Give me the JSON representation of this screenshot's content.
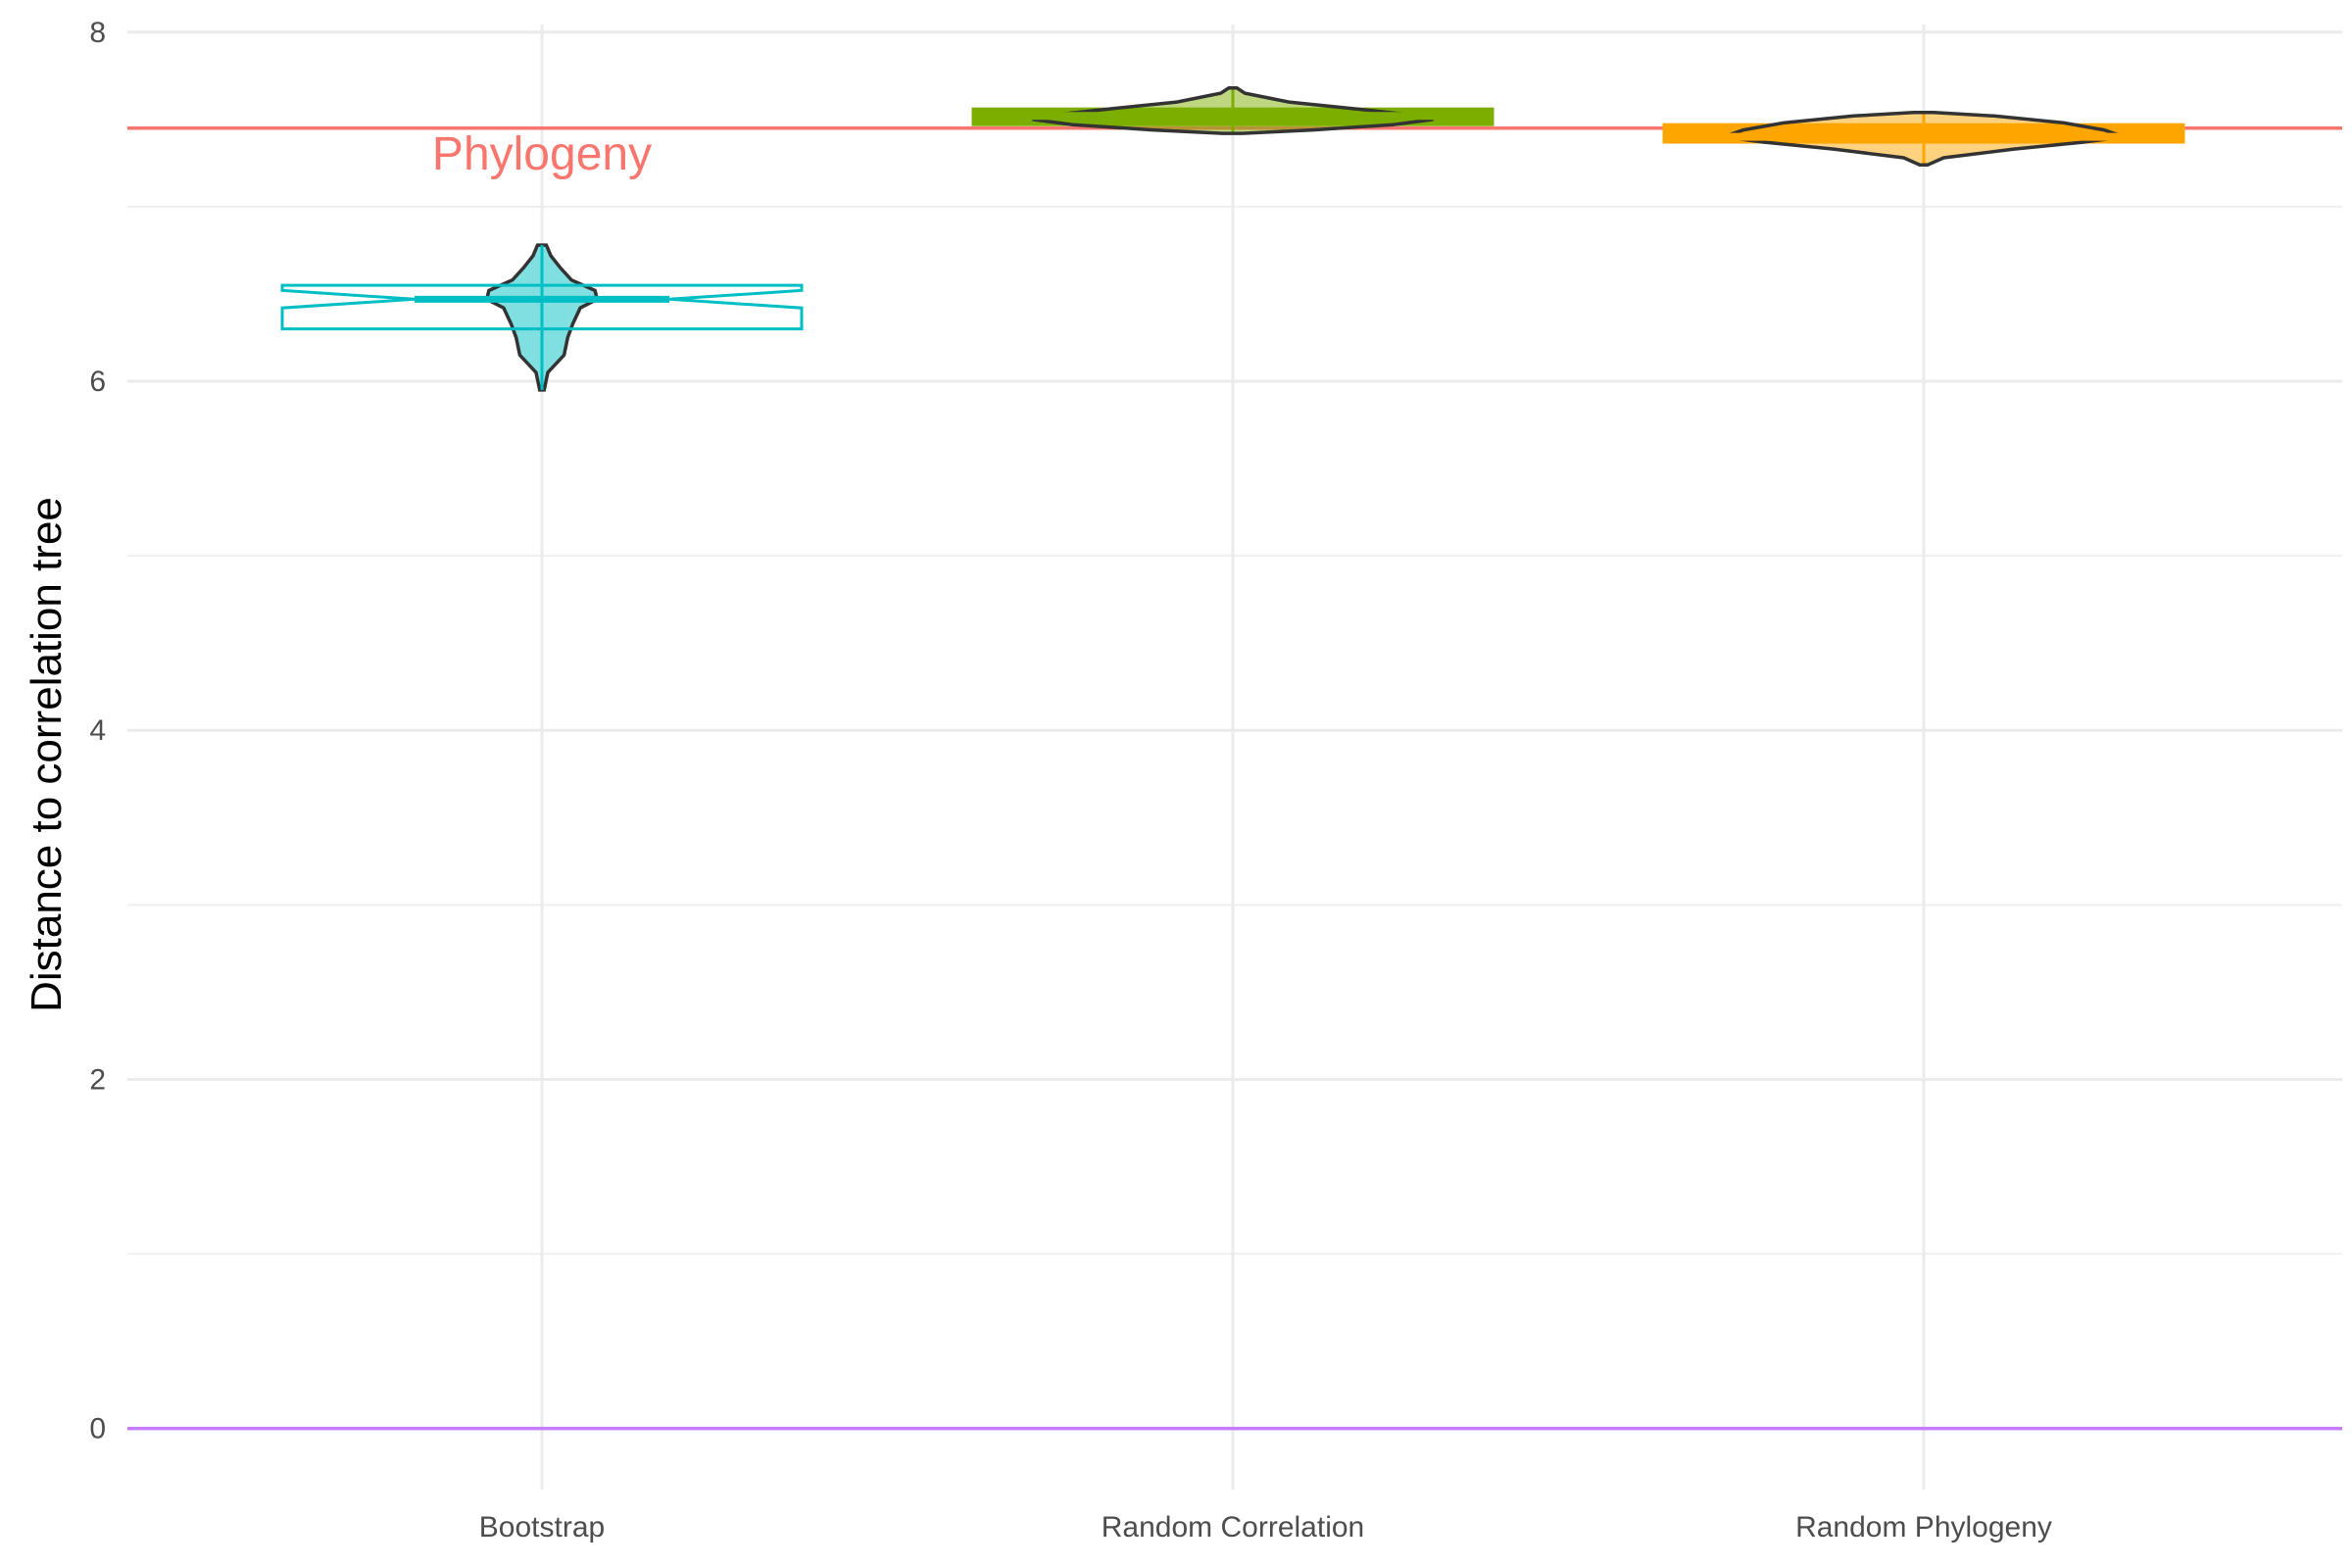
{
  "chart_data": {
    "type": "violin",
    "title": "",
    "xlabel": "",
    "ylabel": "Distance to correlation tree",
    "ylim": [
      -0.35,
      8.1
    ],
    "y_ticks": [
      0,
      2,
      4,
      6,
      8
    ],
    "y_minor_ticks": [
      1,
      3,
      5,
      7
    ],
    "grid": true,
    "legend": "none",
    "categories": [
      "Bootstrap",
      "Random Correlation",
      "Random Phylogeny"
    ],
    "series": [
      {
        "category": "Bootstrap",
        "color": "#00BFC4",
        "min": 5.95,
        "q1": 6.3,
        "median": 6.47,
        "q3": 6.55,
        "max": 6.78,
        "notch_low": 6.42,
        "notch_high": 6.52,
        "violin_profile": [
          [
            5.95,
            0.03
          ],
          [
            6.05,
            0.08
          ],
          [
            6.15,
            0.3
          ],
          [
            6.25,
            0.35
          ],
          [
            6.33,
            0.42
          ],
          [
            6.42,
            0.52
          ],
          [
            6.47,
            0.75
          ],
          [
            6.52,
            0.72
          ],
          [
            6.58,
            0.4
          ],
          [
            6.65,
            0.25
          ],
          [
            6.72,
            0.12
          ],
          [
            6.78,
            0.06
          ]
        ]
      },
      {
        "category": "Random Correlation",
        "color": "#7CAE00",
        "min": 7.42,
        "q1": 7.47,
        "median": 7.52,
        "q3": 7.56,
        "max": 7.68,
        "violin_profile": [
          [
            7.42,
            0.05
          ],
          [
            7.44,
            0.4
          ],
          [
            7.47,
            0.8
          ],
          [
            7.5,
            1.0
          ],
          [
            7.53,
            0.86
          ],
          [
            7.56,
            0.62
          ],
          [
            7.6,
            0.28
          ],
          [
            7.65,
            0.06
          ],
          [
            7.68,
            0.02
          ]
        ]
      },
      {
        "category": "Random Phylogeny",
        "color": "#FFA500",
        "min": 7.24,
        "q1": 7.37,
        "median": 7.4,
        "q3": 7.47,
        "max": 7.54,
        "violin_profile": [
          [
            7.24,
            0.02
          ],
          [
            7.28,
            0.1
          ],
          [
            7.33,
            0.45
          ],
          [
            7.37,
            0.8
          ],
          [
            7.4,
            1.0
          ],
          [
            7.44,
            0.9
          ],
          [
            7.48,
            0.7
          ],
          [
            7.52,
            0.35
          ],
          [
            7.54,
            0.05
          ]
        ]
      }
    ],
    "reference_lines": [
      {
        "value": 7.45,
        "color": "#F8766D",
        "label": "Phylogeny",
        "label_category": "Bootstrap"
      },
      {
        "value": 0,
        "color": "#C77CFF",
        "label": ""
      }
    ]
  }
}
